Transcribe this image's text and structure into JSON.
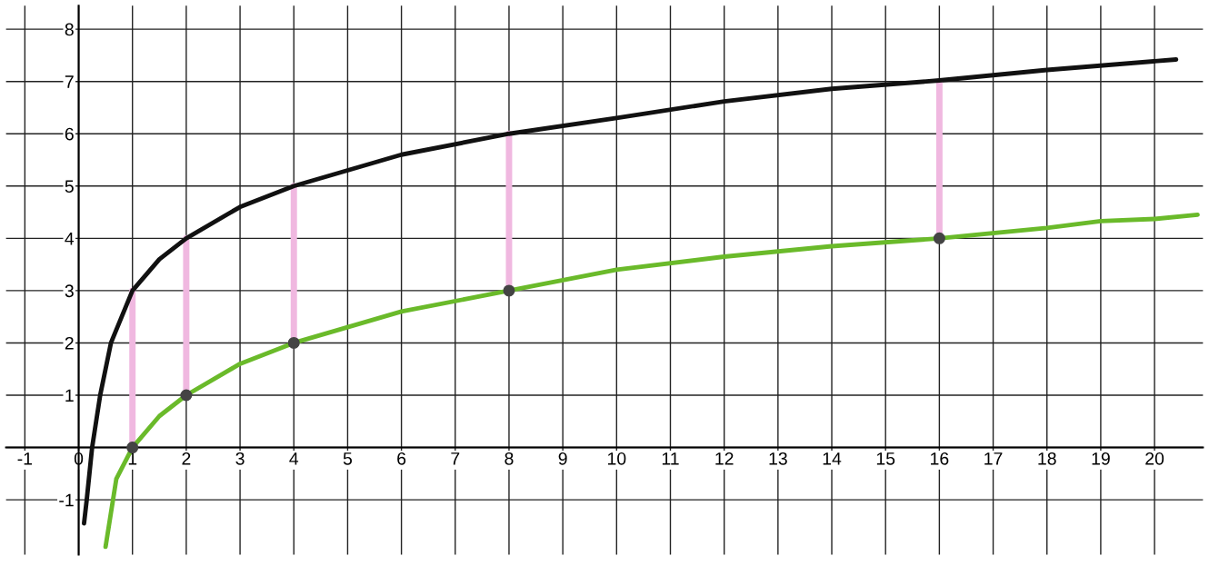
{
  "chart_data": {
    "type": "line",
    "xlim": [
      -1.35,
      20.9
    ],
    "ylim": [
      -2.05,
      8.45
    ],
    "xticks": [
      -1,
      0,
      1,
      2,
      3,
      4,
      5,
      6,
      7,
      8,
      9,
      10,
      11,
      12,
      13,
      14,
      15,
      16,
      17,
      18,
      19,
      20
    ],
    "yticks": [
      -1,
      {
        "value": 0,
        "label": null
      },
      1,
      2,
      3,
      4,
      5,
      6,
      7,
      8
    ],
    "grid": true,
    "legend": false,
    "marker": "none",
    "line_style": "solid",
    "series": [
      {
        "color": "#111111",
        "x": [
          0.1,
          0.15,
          0.25,
          0.4,
          0.6,
          1,
          1.5,
          2,
          3,
          4,
          5,
          6,
          8,
          10,
          12,
          14,
          16,
          18,
          20.4
        ],
        "values": [
          -1.45,
          -1,
          0,
          1,
          2,
          3,
          3.6,
          4,
          4.6,
          5,
          5.3,
          5.6,
          6,
          6.3,
          6.62,
          6.86,
          7.02,
          7.22,
          7.42
        ]
      },
      {
        "color": "#6aba2a",
        "x": [
          0.5,
          0.7,
          1,
          1.5,
          2,
          3,
          4,
          6,
          8,
          10,
          12,
          14,
          16,
          18,
          19,
          20,
          20.8
        ],
        "values": [
          -1.9,
          -0.6,
          0,
          0.6,
          1,
          1.6,
          2,
          2.6,
          3,
          3.4,
          3.65,
          3.85,
          4,
          4.2,
          4.33,
          4.37,
          4.45
        ]
      },
      {
        "color": "#f0b8e0",
        "x": [
          1,
          1
        ],
        "values": [
          0,
          3
        ]
      },
      {
        "color": "#f0b8e0",
        "x": [
          2,
          2
        ],
        "values": [
          1,
          4
        ]
      },
      {
        "color": "#f0b8e0",
        "x": [
          4,
          4
        ],
        "values": [
          2,
          5
        ]
      },
      {
        "color": "#f0b8e0",
        "x": [
          8,
          8
        ],
        "values": [
          3,
          6
        ]
      },
      {
        "color": "#f0b8e0",
        "x": [
          16,
          16
        ],
        "values": [
          4,
          7
        ]
      },
      {
        "type": "scatter",
        "color": "#444444",
        "marker": "circle",
        "x": [
          1,
          2,
          4,
          8,
          16
        ],
        "values": [
          0,
          1,
          2,
          3,
          4
        ]
      }
    ]
  }
}
